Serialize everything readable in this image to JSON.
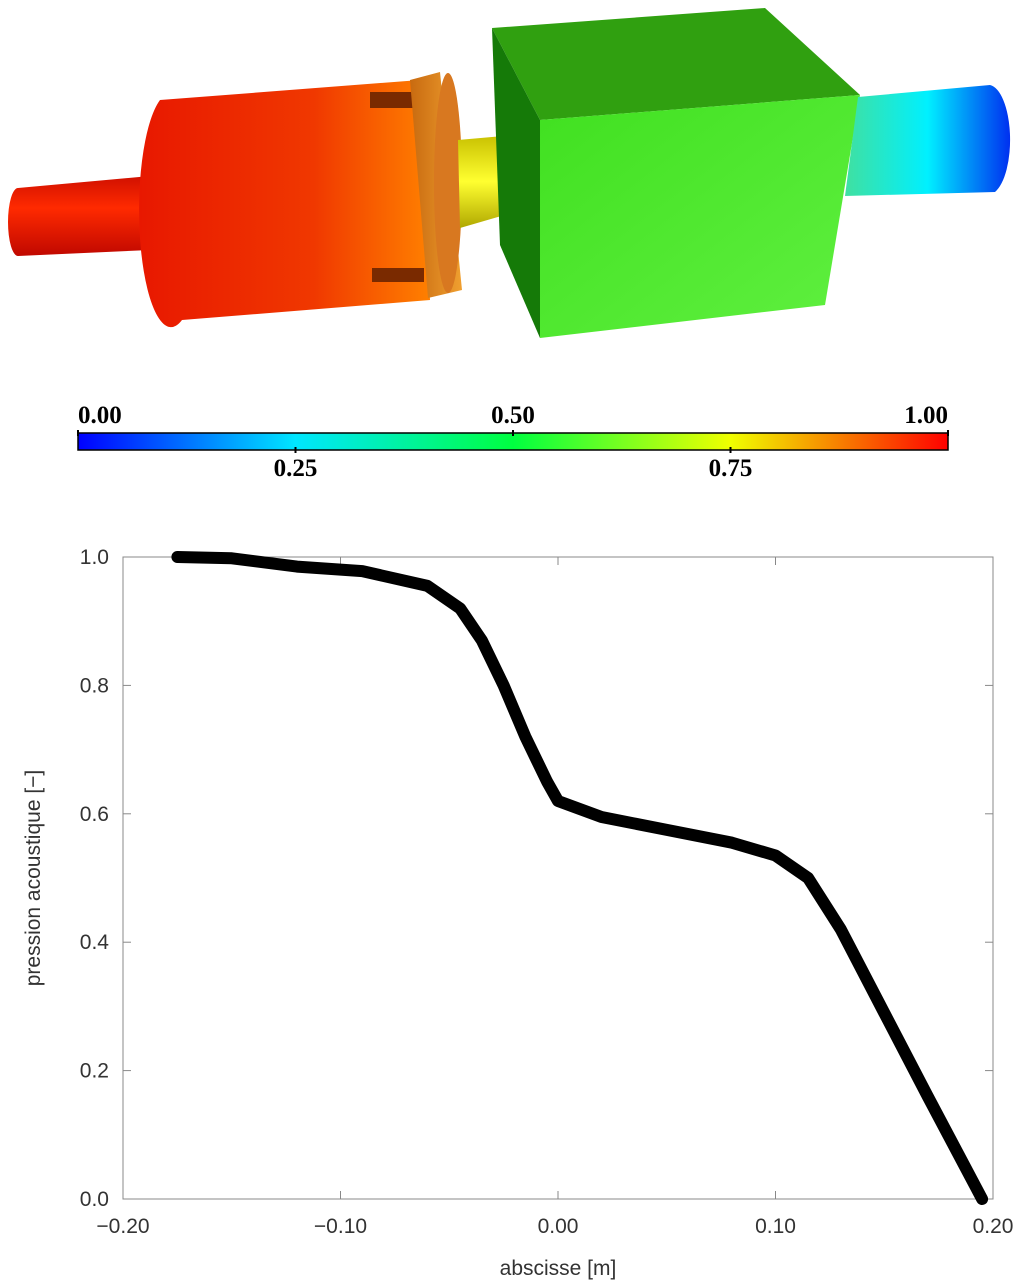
{
  "chart_data": [
    {
      "type": "colorbar",
      "xlim": [
        0,
        1
      ],
      "xticks": [
        {
          "value": 0,
          "label": "0.00"
        },
        {
          "value": 0.25,
          "label": "0.25"
        },
        {
          "value": 0.5,
          "label": "0.50"
        },
        {
          "value": 0.75,
          "label": "0.75"
        },
        {
          "value": 1,
          "label": "1.00"
        }
      ],
      "colors": [
        "#0000ff",
        "#00e6ff",
        "#00ff40",
        "#f0ff00",
        "#ff0000"
      ]
    },
    {
      "type": "line",
      "xlabel": "abscisse [m]",
      "ylabel": "pression acoustique [−]",
      "x": [
        -0.175,
        -0.15,
        -0.12,
        -0.09,
        -0.06,
        -0.045,
        -0.035,
        -0.025,
        -0.015,
        -0.005,
        0.0,
        0.02,
        0.05,
        0.08,
        0.1,
        0.115,
        0.13,
        0.15,
        0.17,
        0.195
      ],
      "values": [
        1.0,
        0.998,
        0.985,
        0.978,
        0.955,
        0.92,
        0.87,
        0.8,
        0.72,
        0.65,
        0.62,
        0.595,
        0.575,
        0.555,
        0.535,
        0.5,
        0.42,
        0.29,
        0.16,
        0.0
      ],
      "color": "#000000",
      "xlim": [
        -0.2,
        0.2
      ],
      "ylim": [
        0,
        1
      ],
      "xticks": [
        {
          "value": -0.2,
          "label": "−0.20"
        },
        {
          "value": -0.1,
          "label": "−0.10"
        },
        {
          "value": 0,
          "label": "0.00"
        },
        {
          "value": 0.1,
          "label": "0.10"
        },
        {
          "value": 0.2,
          "label": "0.20"
        }
      ],
      "yticks": [
        {
          "value": 0,
          "label": "0.0"
        },
        {
          "value": 0.2,
          "label": "0.2"
        },
        {
          "value": 0.4,
          "label": "0.4"
        },
        {
          "value": 0.6,
          "label": "0.6"
        },
        {
          "value": 0.8,
          "label": "0.8"
        },
        {
          "value": 1,
          "label": "1.0"
        }
      ]
    }
  ]
}
